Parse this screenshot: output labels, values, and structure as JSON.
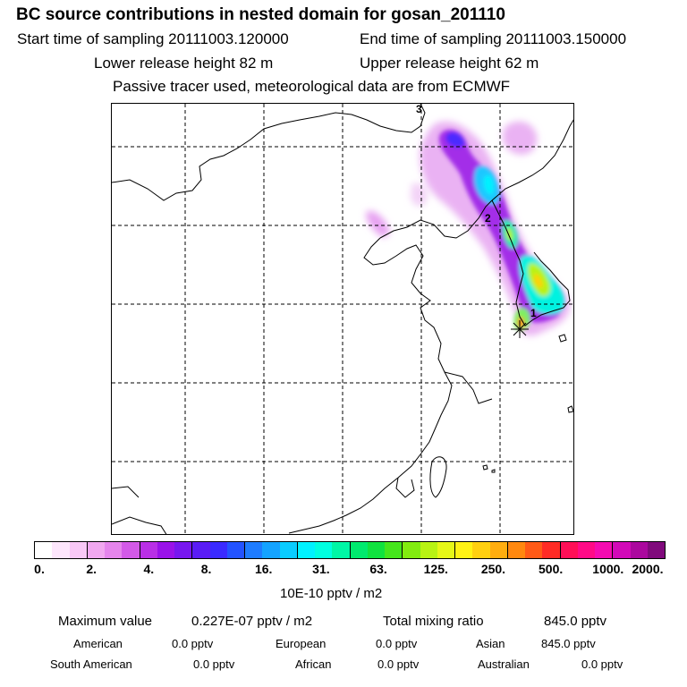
{
  "header": {
    "title": "BC  source contributions in nested domain for gosan_201110",
    "start_label": "Start time of sampling 20111003.120000",
    "end_label": "End time of sampling 20111003.150000",
    "lower_label": "Lower release height   82 m",
    "upper_label": "Upper release height   62 m",
    "note": "Passive tracer used, meteorological data are from ECMWF"
  },
  "map": {
    "trajectory_labels": [
      "3",
      "2",
      "1"
    ],
    "grid_style": "dashed"
  },
  "colorbar": {
    "colors": [
      "#ffffff",
      "#fde6fc",
      "#f8c8f6",
      "#f1a8f0",
      "#e585ec",
      "#d35ae8",
      "#b92fe6",
      "#9a12e9",
      "#7817ef",
      "#5a1cf5",
      "#3a2aff",
      "#2353ff",
      "#1e7cff",
      "#14a3ff",
      "#09ccff",
      "#00f2ff",
      "#00ffe0",
      "#00f7a6",
      "#00ea6e",
      "#10e23f",
      "#45e51c",
      "#82ec10",
      "#b8f313",
      "#e6f717",
      "#fff214",
      "#ffd010",
      "#ffad0f",
      "#ff880f",
      "#ff5a17",
      "#ff2b25",
      "#ff0f57",
      "#ff0a87",
      "#f40bb1",
      "#d209b8",
      "#ab089e",
      "#800a7c"
    ],
    "tick_labels": [
      "0.",
      "2.",
      "4.",
      "8.",
      "16.",
      "31.",
      "63.",
      "125.",
      "250.",
      "500.",
      "1000.",
      "2000."
    ],
    "unit": "10E-10 pptv / m2"
  },
  "stats": {
    "max_label": "Maximum value",
    "max_value": "0.227E-07 pptv / m2",
    "total_label": "Total mixing ratio",
    "total_value": "845.0 pptv"
  },
  "sources": [
    {
      "name": "American",
      "value": "0.0 pptv"
    },
    {
      "name": "European",
      "value": "0.0 pptv"
    },
    {
      "name": "Asian",
      "value": "845.0 pptv"
    },
    {
      "name": "South American",
      "value": "0.0 pptv"
    },
    {
      "name": "African",
      "value": "0.0 pptv"
    },
    {
      "name": "Australian",
      "value": "0.0 pptv"
    }
  ]
}
